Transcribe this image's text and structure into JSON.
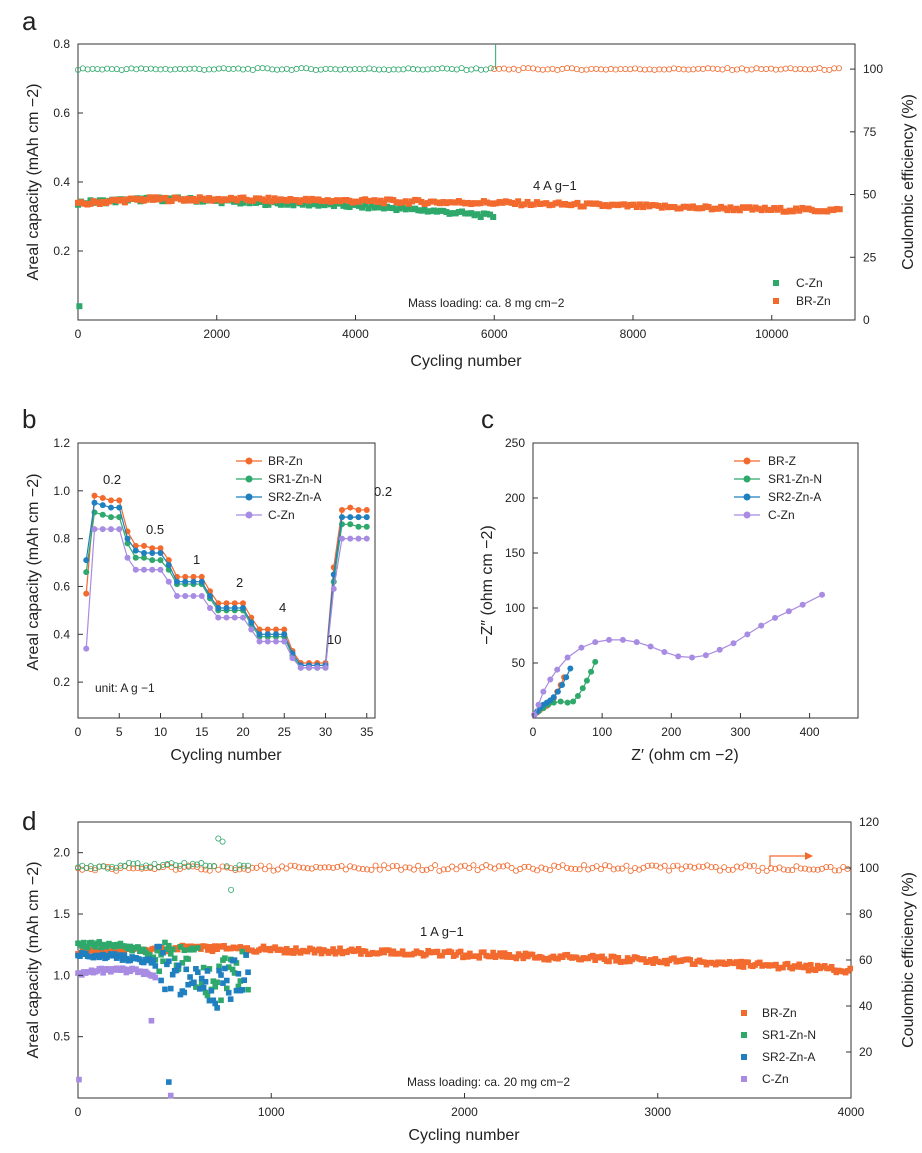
{
  "colors": {
    "orange": "#f26a2e",
    "green": "#2fa86b",
    "blue": "#1f7fbf",
    "purple": "#a88ce3",
    "arrow": "#f26a2e"
  },
  "chart_data": [
    {
      "id": "a",
      "panel_label": "a",
      "type": "scatter",
      "xlabel": "Cycling number",
      "ylabel": "Areal capacity  (mAh cm −2)",
      "y2label": "Coulombic efficiency   (%)",
      "xlim": [
        0,
        11200
      ],
      "ylim": [
        0,
        0.8
      ],
      "y2lim": [
        0,
        110
      ],
      "xticks": [
        0,
        2000,
        4000,
        6000,
        8000,
        10000
      ],
      "yticks": [
        0.2,
        0.4,
        0.6,
        0.8
      ],
      "y2ticks": [
        0,
        25,
        50,
        75,
        100
      ],
      "annotations": [
        "4 A g−1",
        "Mass loading: ca. 8 mg cm−2"
      ],
      "series": [
        {
          "name": "C-Zn",
          "color": "#2fa86b",
          "axis": "left",
          "x": [
            0,
            500,
            1000,
            1500,
            2000,
            2500,
            3000,
            3500,
            4000,
            4500,
            5000,
            5500,
            6000
          ],
          "y": [
            0.34,
            0.345,
            0.35,
            0.35,
            0.345,
            0.34,
            0.338,
            0.335,
            0.33,
            0.325,
            0.318,
            0.31,
            0.3
          ]
        },
        {
          "name": "BR-Zn",
          "color": "#f26a2e",
          "axis": "left",
          "x": [
            0,
            500,
            1000,
            2000,
            3000,
            4000,
            5000,
            6000,
            7000,
            8000,
            9000,
            10000,
            11000
          ],
          "y": [
            0.335,
            0.345,
            0.35,
            0.35,
            0.348,
            0.345,
            0.342,
            0.34,
            0.335,
            0.33,
            0.325,
            0.32,
            0.318
          ]
        },
        {
          "name": "C-Zn CE",
          "color": "#2fa86b",
          "axis": "right",
          "x": [
            0,
            6000
          ],
          "y": [
            100,
            100
          ]
        },
        {
          "name": "BR-Zn CE",
          "color": "#f26a2e",
          "axis": "right",
          "x": [
            6000,
            11000
          ],
          "y": [
            100,
            100
          ]
        }
      ],
      "legend": [
        "C-Zn",
        "BR-Zn"
      ]
    },
    {
      "id": "b",
      "panel_label": "b",
      "type": "line",
      "xlabel": "Cycling number",
      "ylabel": "Areal capacity  (mAh cm −2)",
      "xlim": [
        0,
        36
      ],
      "ylim": [
        0.05,
        1.2
      ],
      "xticks": [
        0,
        5,
        10,
        15,
        20,
        25,
        30,
        35
      ],
      "yticks": [
        0.2,
        0.4,
        0.6,
        0.8,
        1.0,
        1.2
      ],
      "rate_labels": [
        "0.2",
        "0.5",
        "1",
        "2",
        "4",
        "10",
        "0.2"
      ],
      "unit_label": "unit: A g −1",
      "series": [
        {
          "name": "BR-Zn",
          "color": "#f26a2e",
          "values": [
            0.57,
            0.98,
            0.97,
            0.96,
            0.96,
            0.83,
            0.77,
            0.77,
            0.76,
            0.76,
            0.71,
            0.64,
            0.64,
            0.64,
            0.64,
            0.58,
            0.53,
            0.53,
            0.53,
            0.53,
            0.47,
            0.42,
            0.42,
            0.42,
            0.42,
            0.33,
            0.28,
            0.28,
            0.28,
            0.28,
            0.68,
            0.92,
            0.93,
            0.92,
            0.92
          ]
        },
        {
          "name": "SR1-Zn-N",
          "color": "#2fa86b",
          "values": [
            0.66,
            0.91,
            0.9,
            0.89,
            0.89,
            0.78,
            0.72,
            0.72,
            0.71,
            0.71,
            0.67,
            0.61,
            0.61,
            0.61,
            0.61,
            0.55,
            0.5,
            0.5,
            0.5,
            0.5,
            0.44,
            0.39,
            0.39,
            0.39,
            0.39,
            0.31,
            0.26,
            0.26,
            0.26,
            0.26,
            0.62,
            0.86,
            0.86,
            0.85,
            0.85
          ]
        },
        {
          "name": "SR2-Zn-A",
          "color": "#1f7fbf",
          "values": [
            0.71,
            0.95,
            0.94,
            0.93,
            0.93,
            0.8,
            0.75,
            0.74,
            0.74,
            0.74,
            0.69,
            0.62,
            0.62,
            0.62,
            0.62,
            0.56,
            0.51,
            0.51,
            0.51,
            0.51,
            0.45,
            0.4,
            0.4,
            0.4,
            0.4,
            0.32,
            0.27,
            0.27,
            0.27,
            0.27,
            0.65,
            0.89,
            0.89,
            0.89,
            0.89
          ]
        },
        {
          "name": "C-Zn",
          "color": "#a88ce3",
          "values": [
            0.34,
            0.84,
            0.84,
            0.84,
            0.84,
            0.72,
            0.67,
            0.67,
            0.67,
            0.67,
            0.62,
            0.56,
            0.56,
            0.56,
            0.56,
            0.51,
            0.47,
            0.47,
            0.47,
            0.47,
            0.42,
            0.37,
            0.37,
            0.37,
            0.37,
            0.3,
            0.26,
            0.26,
            0.26,
            0.26,
            0.59,
            0.8,
            0.8,
            0.8,
            0.8
          ]
        }
      ]
    },
    {
      "id": "c",
      "panel_label": "c",
      "type": "line",
      "xlabel": "Z′ (ohm cm −2)",
      "ylabel": "−Z″ (ohm cm −2)",
      "xlim": [
        0,
        470
      ],
      "ylim": [
        0,
        250
      ],
      "xticks": [
        0,
        100,
        200,
        300,
        400
      ],
      "yticks": [
        50,
        100,
        150,
        200,
        250
      ],
      "series": [
        {
          "name": "BR-Z",
          "color": "#f26a2e",
          "x": [
            2,
            6,
            10,
            15,
            20,
            25,
            30,
            35,
            40,
            45
          ],
          "y": [
            3,
            5,
            7,
            9,
            11,
            14,
            18,
            24,
            30,
            37
          ]
        },
        {
          "name": "SR1-Zn-N",
          "color": "#2fa86b",
          "x": [
            2,
            8,
            15,
            22,
            30,
            40,
            50,
            58,
            65,
            72,
            78,
            84,
            90
          ],
          "y": [
            3,
            6,
            9,
            12,
            14,
            15,
            14,
            15,
            20,
            27,
            34,
            42,
            51
          ]
        },
        {
          "name": "SR2-Zn-A",
          "color": "#1f7fbf",
          "x": [
            2,
            6,
            10,
            15,
            20,
            25,
            30,
            36,
            42,
            48,
            54
          ],
          "y": [
            3,
            6,
            9,
            12,
            14,
            16,
            19,
            24,
            30,
            37,
            45
          ]
        },
        {
          "name": "C-Zn",
          "color": "#a88ce3",
          "x": [
            2,
            8,
            15,
            25,
            35,
            50,
            70,
            90,
            110,
            130,
            150,
            170,
            190,
            210,
            230,
            250,
            270,
            290,
            310,
            330,
            350,
            370,
            390,
            418
          ],
          "y": [
            3,
            12,
            24,
            35,
            44,
            55,
            64,
            69,
            71,
            71,
            69,
            65,
            60,
            56,
            55,
            57,
            62,
            68,
            76,
            84,
            91,
            97,
            103,
            112
          ]
        }
      ]
    },
    {
      "id": "d",
      "panel_label": "d",
      "type": "scatter",
      "xlabel": "Cycling number",
      "ylabel": "Areal capacity  (mAh cm −2)",
      "y2label": "Coulombic efficiency   (%)",
      "xlim": [
        0,
        4000
      ],
      "ylim": [
        0,
        2.25
      ],
      "y2lim": [
        0,
        120
      ],
      "xticks": [
        0,
        1000,
        2000,
        3000,
        4000
      ],
      "yticks": [
        0.5,
        1.0,
        1.5,
        2.0
      ],
      "y2ticks": [
        20,
        40,
        60,
        80,
        100,
        120
      ],
      "annotations": [
        "1 A  g−1",
        "Mass loading: ca. 20 mg cm−2"
      ],
      "series": [
        {
          "name": "BR-Zn",
          "color": "#f26a2e",
          "axis": "left",
          "x": [
            0,
            200,
            500,
            800,
            1200,
            1600,
            2000,
            2400,
            2800,
            3200,
            3600,
            4000
          ],
          "y": [
            1.2,
            1.21,
            1.22,
            1.22,
            1.2,
            1.19,
            1.17,
            1.15,
            1.13,
            1.11,
            1.08,
            1.04
          ]
        },
        {
          "name": "SR1-Zn-N",
          "color": "#2fa86b",
          "axis": "left",
          "x": [
            0,
            100,
            200,
            300,
            400,
            500,
            600,
            700,
            800,
            880
          ],
          "y": [
            1.24,
            1.25,
            1.24,
            1.22,
            1.15,
            1.12,
            1.08,
            0.95,
            0.98,
            1.05
          ]
        },
        {
          "name": "SR2-Zn-A",
          "color": "#1f7fbf",
          "axis": "left",
          "x": [
            0,
            100,
            200,
            300,
            400,
            450,
            500,
            600,
            700,
            800,
            880
          ],
          "y": [
            1.16,
            1.16,
            1.15,
            1.13,
            1.1,
            1.02,
            0.9,
            0.95,
            0.85,
            0.95,
            1.05
          ]
        },
        {
          "name": "C-Zn",
          "color": "#a88ce3",
          "axis": "left",
          "x": [
            0,
            100,
            200,
            300,
            400
          ],
          "y": [
            1.02,
            1.03,
            1.04,
            1.03,
            1.0
          ]
        },
        {
          "name": "BR-Zn CE",
          "color": "#f26a2e",
          "axis": "right",
          "x": [
            0,
            4000
          ],
          "y": [
            100,
            100
          ]
        },
        {
          "name": "SR1-Zn-N CE",
          "color": "#2fa86b",
          "axis": "right",
          "x": [
            0,
            880
          ],
          "y": [
            101,
            101
          ]
        }
      ],
      "legend": [
        "BR-Zn",
        "SR1-Zn-N",
        "SR2-Zn-A",
        "C-Zn"
      ]
    }
  ]
}
